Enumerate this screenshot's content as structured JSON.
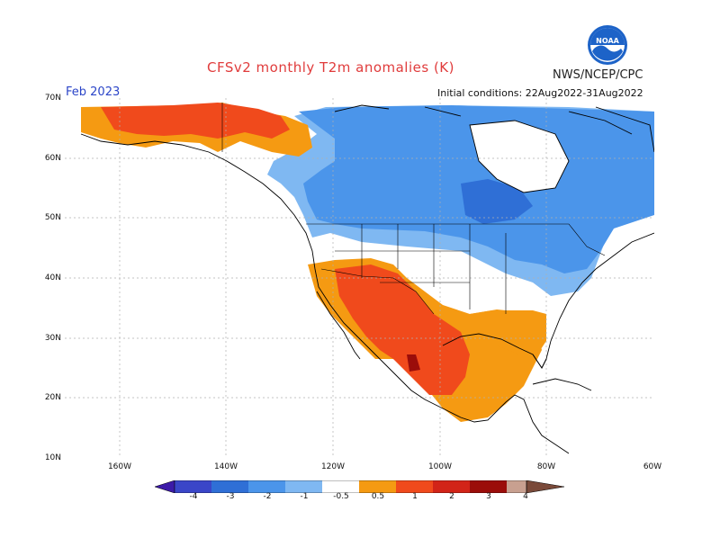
{
  "header": {
    "title": "CFSv2 monthly T2m anomalies (K)",
    "agency": "NWS/NCEP/CPC",
    "logo_text": "NOAA",
    "month": "Feb 2023",
    "initial_conditions": "Initial conditions: 22Aug2022-31Aug2022"
  },
  "axes": {
    "lat_labels": [
      "70N",
      "60N",
      "50N",
      "40N",
      "30N",
      "20N",
      "10N"
    ],
    "lon_labels": [
      "160W",
      "140W",
      "120W",
      "100W",
      "80W",
      "60W"
    ]
  },
  "colorbar": {
    "labels": [
      "-4",
      "-3",
      "-2",
      "-1",
      "-0.5",
      "0.5",
      "1",
      "2",
      "3",
      "4"
    ],
    "colors": [
      "#3c1aa8",
      "#3a46c8",
      "#2f6fd6",
      "#4b95ea",
      "#7fb8f2",
      "#ffffff",
      "#f59a12",
      "#f04a1c",
      "#d22418",
      "#9b0d0a",
      "#c8a090",
      "#7a4a3a"
    ]
  },
  "colors": {
    "land_outline": "#000000",
    "grid": "#b0b0b0",
    "title": "#e03c3c",
    "month": "#2b45c8"
  }
}
